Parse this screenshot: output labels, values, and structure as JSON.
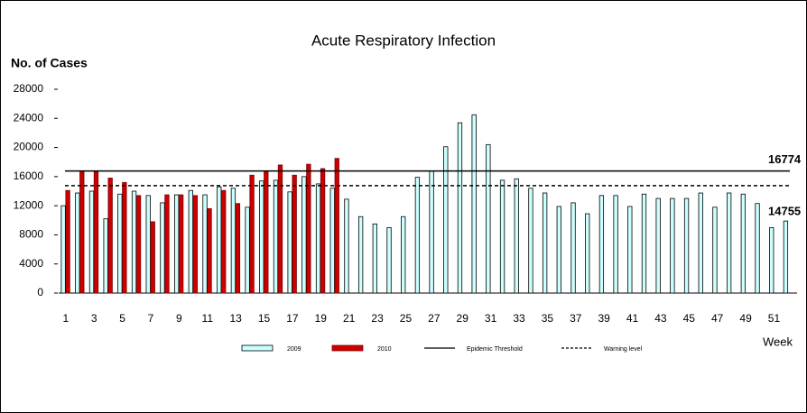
{
  "chart_data": {
    "type": "bar",
    "title": "Acute Respiratory Infection",
    "y_label": "No. of Cases",
    "x_label": "Week",
    "categories": [
      "1",
      null,
      "3",
      null,
      "5",
      null,
      "7",
      null,
      "9",
      null,
      "11",
      null,
      "13",
      null,
      "15",
      null,
      "17",
      null,
      "19",
      null,
      "21",
      null,
      "23",
      null,
      "25",
      null,
      "27",
      null,
      "29",
      null,
      "31",
      null,
      "33",
      null,
      "35",
      null,
      "37",
      null,
      "39",
      null,
      "41",
      null,
      "43",
      null,
      "45",
      null,
      "47",
      null,
      "49",
      null,
      "51",
      null
    ],
    "series": [
      {
        "name": "2009",
        "color": "#ccffff",
        "values": [
          12000,
          13750,
          14000,
          10200,
          13600,
          14000,
          13400,
          12400,
          13500,
          14100,
          13500,
          14600,
          14400,
          11800,
          15400,
          15500,
          13900,
          16000,
          15000,
          14400,
          12900,
          10500,
          9500,
          9000,
          10500,
          15900,
          16800,
          20100,
          23400,
          24500,
          20400,
          15500,
          15700,
          14400,
          13750,
          11900,
          12400,
          10900,
          13400,
          13400,
          11900,
          13600,
          13000,
          13000,
          13000,
          13750,
          11800,
          13750,
          13600,
          12300,
          9000,
          9900
        ]
      },
      {
        "name": "2010",
        "color": "#cc0000",
        "values": [
          14100,
          16700,
          16700,
          15800,
          15200,
          13400,
          9800,
          13500,
          13500,
          13400,
          11600,
          14100,
          12300,
          16200,
          16700,
          17600,
          16200,
          17700,
          17100,
          18500,
          null,
          null,
          null,
          null,
          null,
          null,
          null,
          null,
          null,
          null,
          null,
          null,
          null,
          null,
          null,
          null,
          null,
          null,
          null,
          null,
          null,
          null,
          null,
          null,
          null,
          null,
          null,
          null,
          null,
          null,
          null,
          null
        ]
      }
    ],
    "lines": [
      {
        "name": "Epidemic Threshold",
        "value": 16774,
        "style": "solid",
        "color": "#000000"
      },
      {
        "name": "Warning level",
        "value": 14755,
        "style": "dashed",
        "color": "#000000"
      }
    ],
    "ylim": [
      0,
      28000
    ],
    "yticks": [
      0,
      4000,
      8000,
      12000,
      16000,
      20000,
      24000,
      28000
    ]
  }
}
